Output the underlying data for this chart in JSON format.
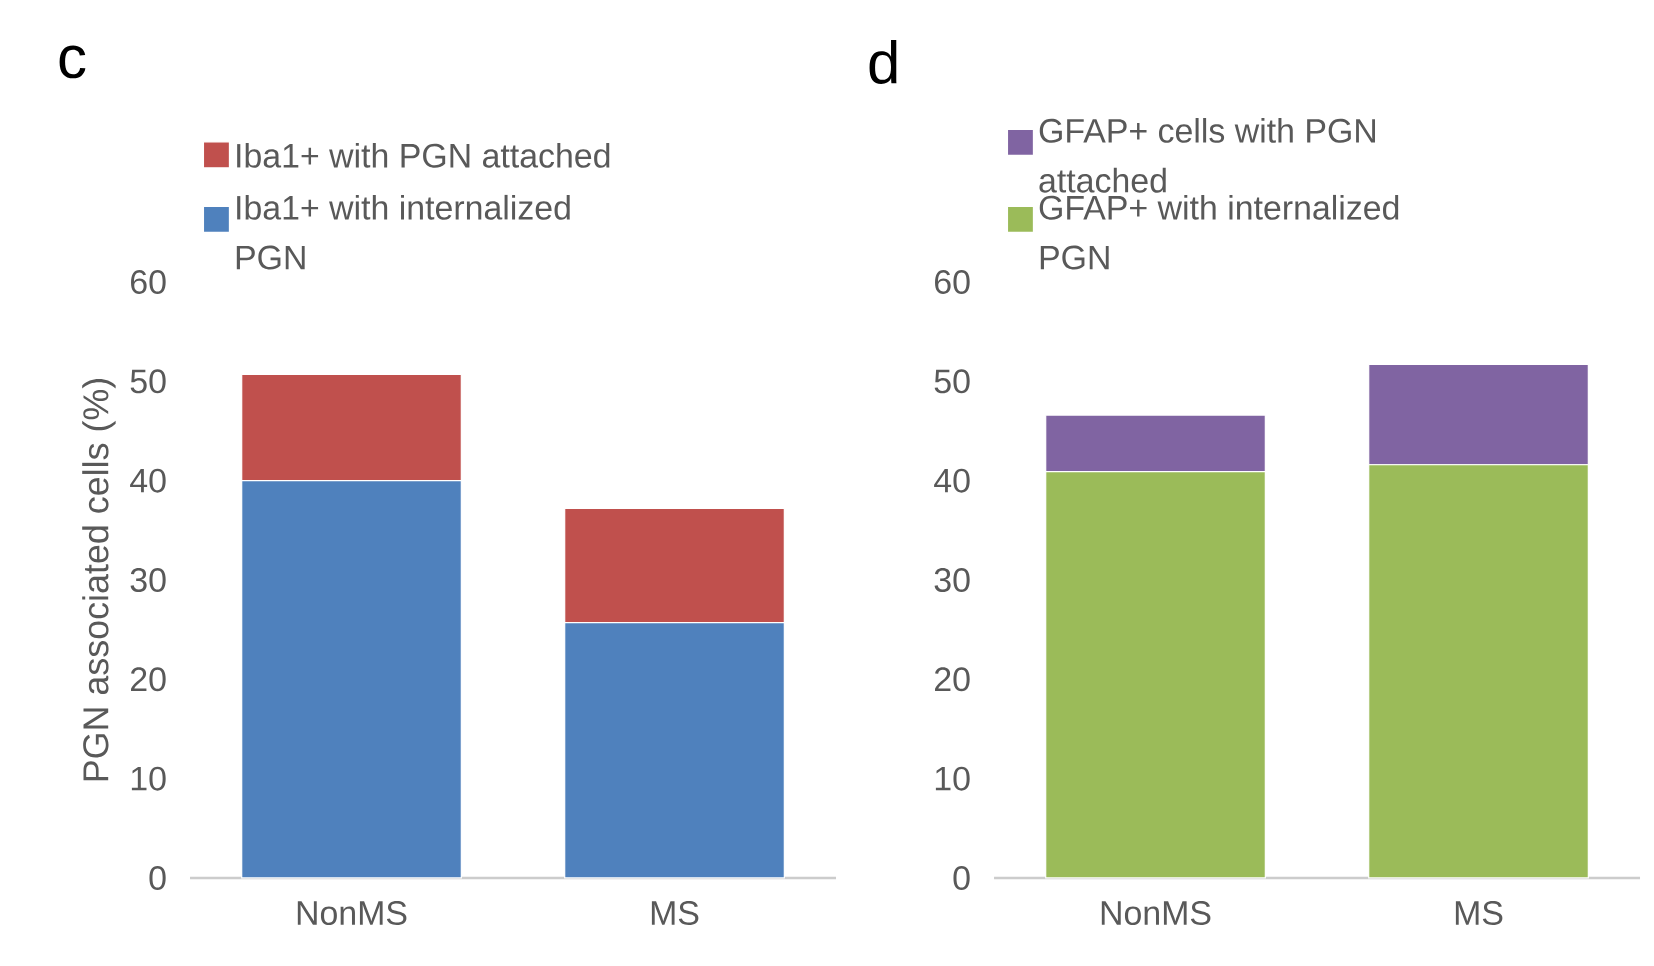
{
  "chart_data": [
    {
      "type": "bar",
      "title": "c",
      "ylabel": "PGN associated cells (%)",
      "categories": [
        "NonMS",
        "MS"
      ],
      "stacked": true,
      "legend": "top",
      "series": [
        {
          "name": "Iba1+ with internalized PGN",
          "color": "#4f81bd",
          "values": [
            40.0,
            25.7
          ]
        },
        {
          "name": "Iba1+ with PGN attached",
          "color": "#c0504d",
          "values": [
            10.7,
            11.5
          ]
        }
      ],
      "ylim": [
        0,
        60
      ],
      "yticks": [
        0,
        10,
        20,
        30,
        40,
        50,
        60
      ],
      "grid": false
    },
    {
      "type": "bar",
      "title": "d",
      "categories": [
        "NonMS",
        "MS"
      ],
      "stacked": true,
      "legend": "top",
      "series": [
        {
          "name": "GFAP+ with internalized PGN",
          "color": "#9bbb59",
          "values": [
            40.9,
            41.6
          ]
        },
        {
          "name": "GFAP+ cells with PGN attached",
          "color": "#8064a2",
          "values": [
            5.7,
            10.1
          ]
        }
      ],
      "ylim": [
        0,
        60
      ],
      "yticks": [
        0,
        10,
        20,
        30,
        40,
        50,
        60
      ],
      "grid": false
    }
  ]
}
